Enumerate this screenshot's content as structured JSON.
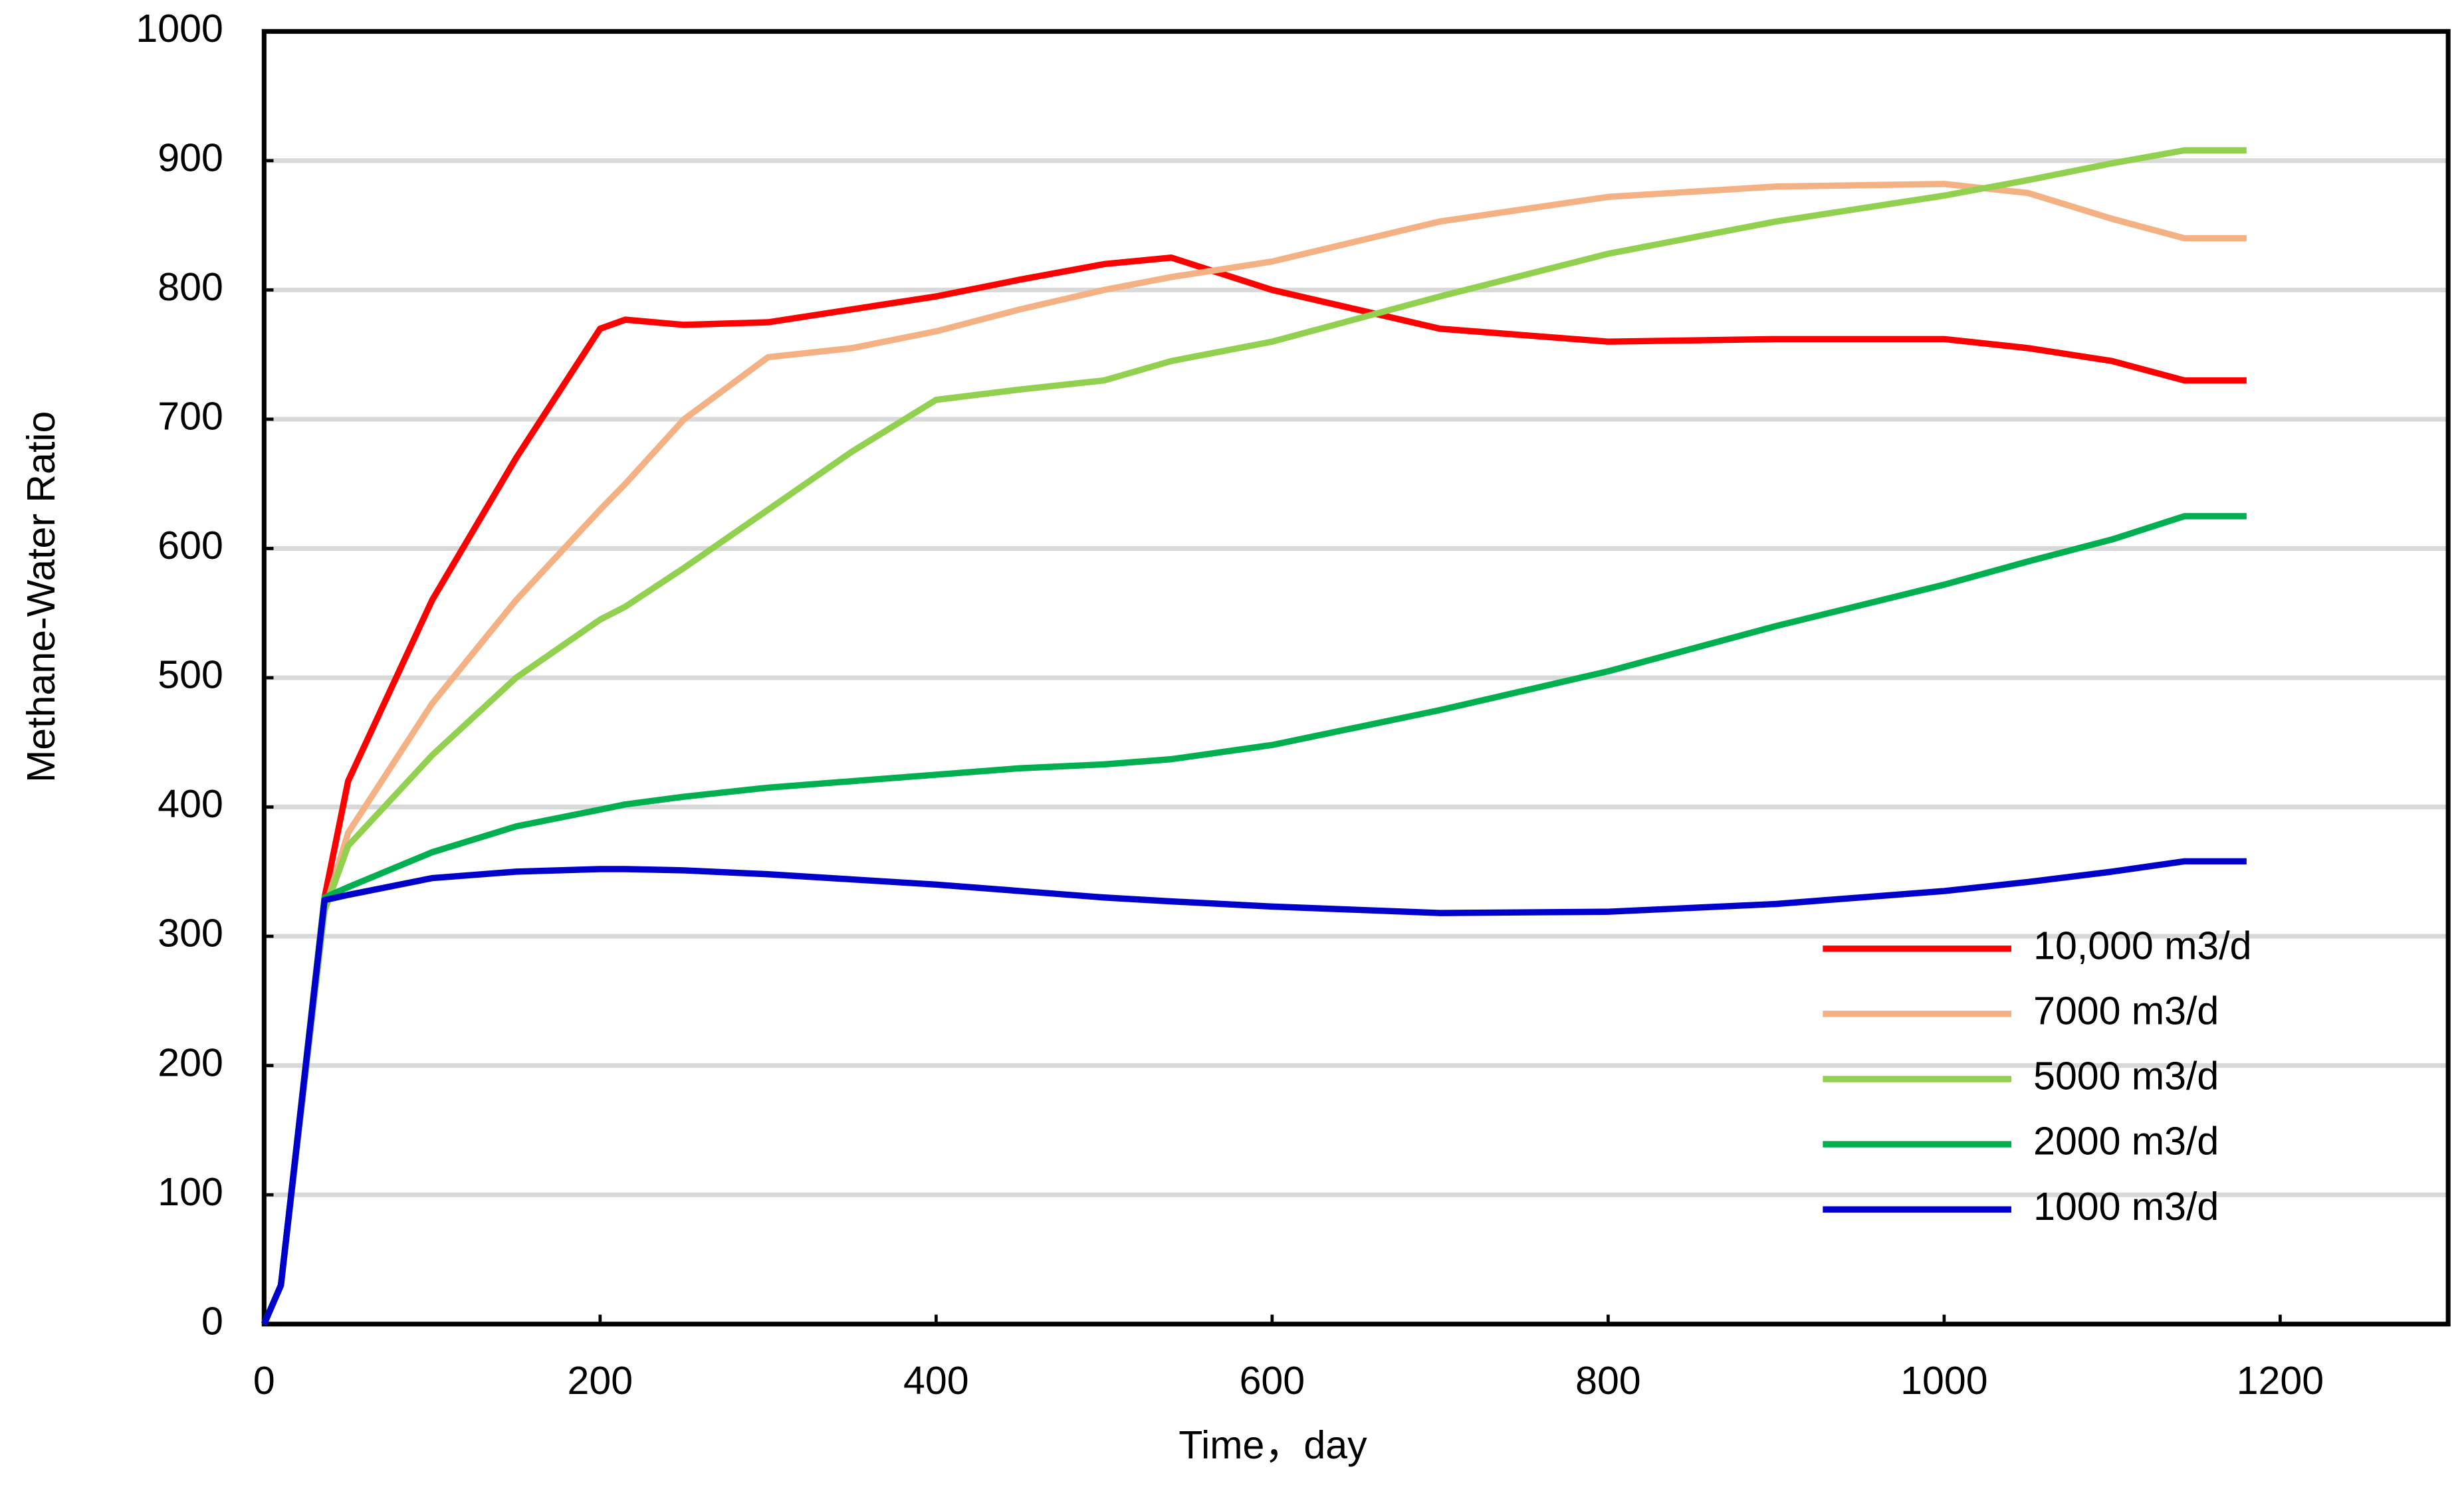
{
  "chart_data": {
    "type": "line",
    "x_label": "Time，day",
    "y_label": "Methane-Water Ratio",
    "x": [
      0,
      10,
      36,
      50,
      100,
      150,
      200,
      215,
      250,
      300,
      350,
      400,
      450,
      500,
      540,
      600,
      700,
      800,
      900,
      1000,
      1050,
      1100,
      1143,
      1180
    ],
    "series": [
      {
        "name": "10,000 m3/d",
        "color": "#ff0000",
        "values": [
          0,
          30,
          330,
          420,
          560,
          670,
          770,
          777,
          773,
          775,
          785,
          795,
          808,
          820,
          825,
          800,
          770,
          760,
          762,
          762,
          755,
          745,
          730,
          730
        ]
      },
      {
        "name": "7000 m3/d",
        "color": "#f4b183",
        "values": [
          0,
          30,
          320,
          380,
          480,
          560,
          630,
          650,
          700,
          748,
          755,
          768,
          785,
          800,
          810,
          822,
          853,
          872,
          880,
          882,
          875,
          855,
          840,
          840
        ]
      },
      {
        "name": "5000 m3/d",
        "color": "#92d050",
        "values": [
          0,
          30,
          320,
          370,
          440,
          500,
          545,
          555,
          585,
          630,
          675,
          715,
          723,
          730,
          745,
          760,
          795,
          828,
          853,
          873,
          885,
          898,
          908,
          908
        ]
      },
      {
        "name": "2000 m3/d",
        "color": "#00b050",
        "values": [
          0,
          30,
          330,
          338,
          365,
          385,
          398,
          402,
          408,
          415,
          420,
          425,
          430,
          433,
          437,
          448,
          475,
          505,
          540,
          572,
          590,
          607,
          625,
          625
        ]
      },
      {
        "name": "1000 m3/d",
        "color": "#0000cc",
        "values": [
          0,
          30,
          328,
          332,
          345,
          350,
          352,
          352,
          351,
          348,
          344,
          340,
          335,
          330,
          327,
          323,
          318,
          319,
          325,
          335,
          342,
          350,
          358,
          358
        ]
      }
    ],
    "xlim": [
      0,
      1300
    ],
    "ylim": [
      0,
      1000
    ],
    "xticks": [
      0,
      200,
      400,
      600,
      800,
      1000,
      1200
    ],
    "yticks": [
      0,
      100,
      200,
      300,
      400,
      500,
      600,
      700,
      800,
      900,
      1000
    ],
    "grid": true,
    "legend": "lower right"
  }
}
